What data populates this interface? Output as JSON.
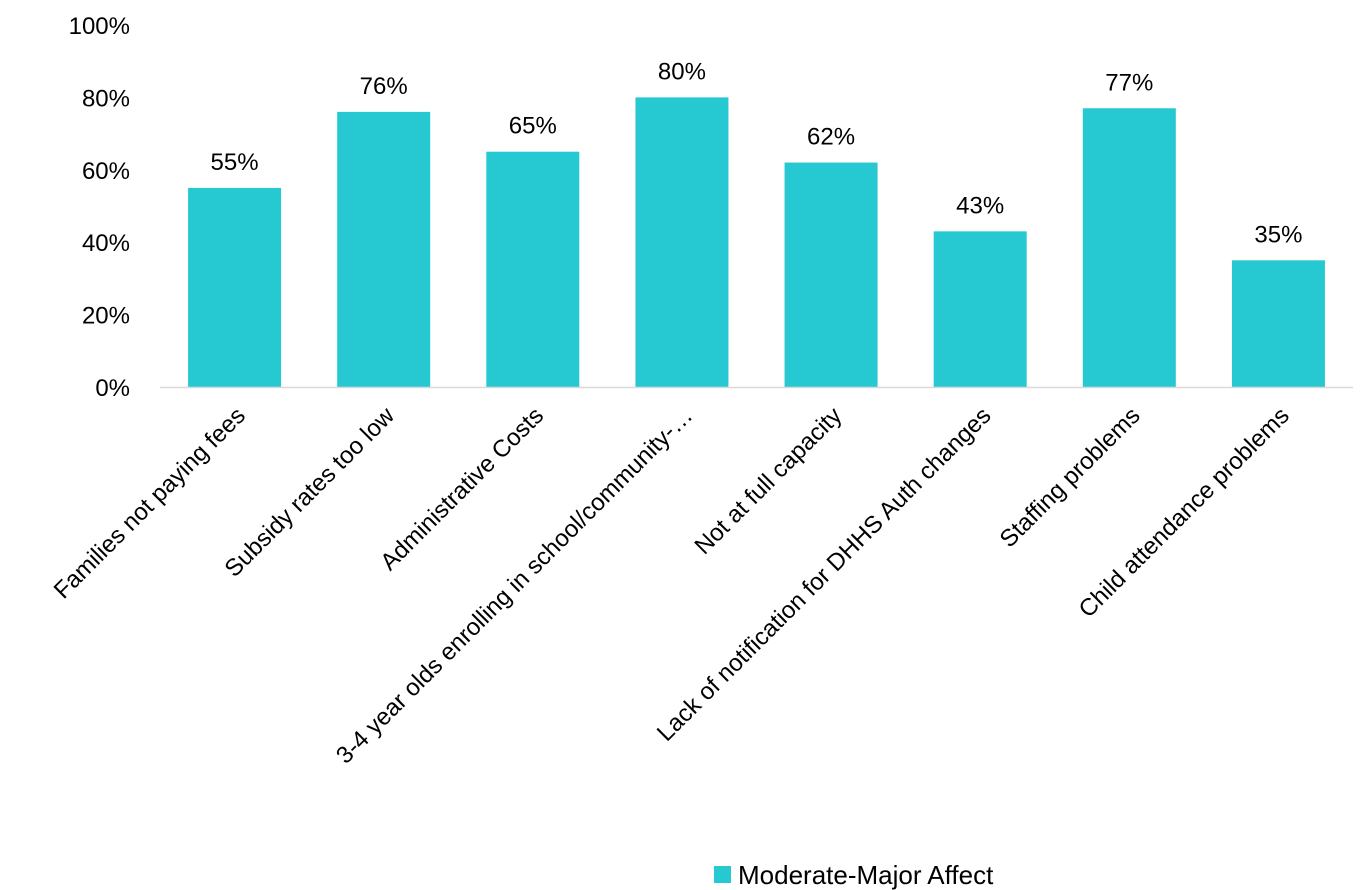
{
  "chart_data": {
    "type": "bar",
    "categories": [
      "Families not paying fees",
      "Subsidy rates too low",
      "Administrative Costs",
      "3-4 year olds enrolling in school/community-…",
      "Not at full capacity",
      "Lack of notification for DHHS Auth changes",
      "Staffing problems",
      "Child attendance problems"
    ],
    "series": [
      {
        "name": "Moderate-Major Affect",
        "values": [
          55,
          76,
          65,
          80,
          62,
          43,
          77,
          35
        ],
        "color": "#26C9D1"
      }
    ],
    "data_labels": [
      "55%",
      "76%",
      "65%",
      "80%",
      "62%",
      "43%",
      "77%",
      "35%"
    ],
    "y_ticks": [
      "0%",
      "20%",
      "40%",
      "60%",
      "80%",
      "100%"
    ],
    "ylim": [
      0,
      100
    ],
    "grid": false,
    "legend_position": "bottom",
    "axis_color": "#D9D9D9"
  }
}
